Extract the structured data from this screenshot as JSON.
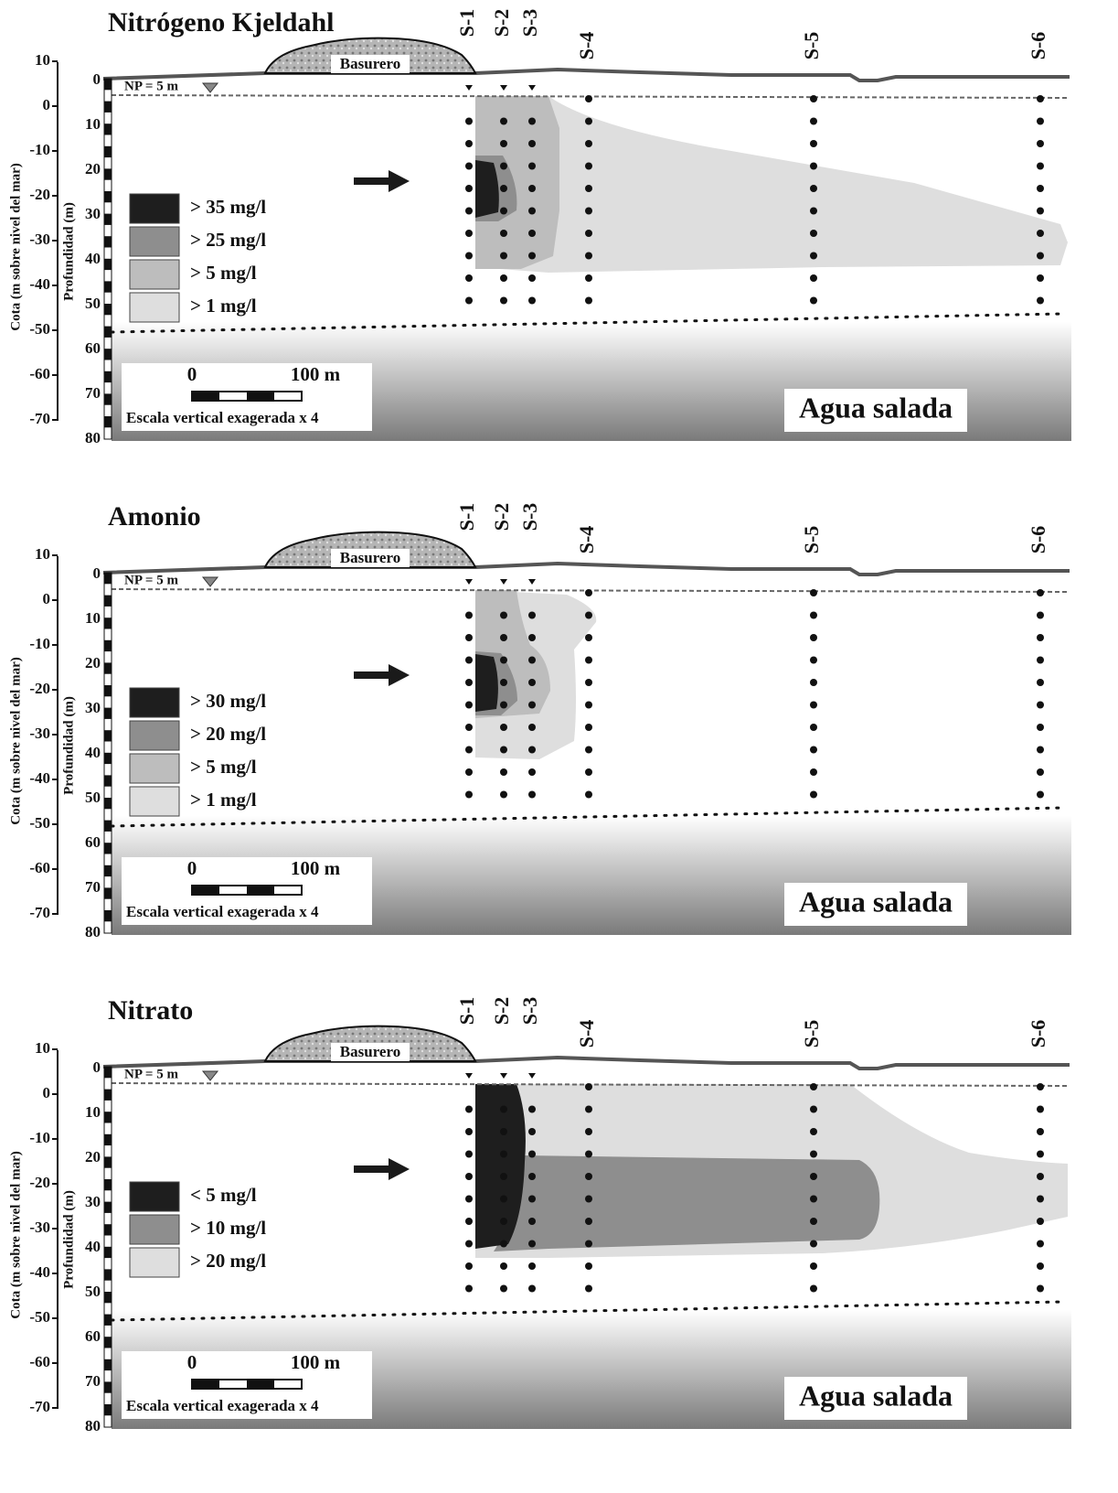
{
  "axis": {
    "outer_label": "Cota (m sobre nivel del mar)",
    "inner_label": "Profundidad (m)",
    "outer_ticks": [
      10,
      0,
      -10,
      -20,
      -30,
      -40,
      -50,
      -60,
      -70
    ],
    "inner_ticks": [
      0,
      10,
      20,
      30,
      40,
      50,
      60,
      70,
      80
    ]
  },
  "wells": [
    "S-1",
    "S-2",
    "S-3",
    "S-4",
    "S-5",
    "S-6"
  ],
  "landfill": "Basurero",
  "water_table": "NP = 5 m",
  "scale": {
    "start": "0",
    "end": "100 m",
    "note": "Escala vertical exagerada x 4"
  },
  "salt_water": "Agua salada",
  "panels": [
    {
      "title": "Nitrógeno Kjeldahl",
      "legend": [
        {
          "label": "> 35 mg/l",
          "color": "#1e1e1e"
        },
        {
          "label": "> 25 mg/l",
          "color": "#8e8e8e"
        },
        {
          "label": "> 5 mg/l",
          "color": "#bdbdbd"
        },
        {
          "label": "> 1 mg/l",
          "color": "#dedede"
        }
      ]
    },
    {
      "title": "Amonio",
      "legend": [
        {
          "label": "> 30 mg/l",
          "color": "#1e1e1e"
        },
        {
          "label": "> 20 mg/l",
          "color": "#8e8e8e"
        },
        {
          "label": "> 5 mg/l",
          "color": "#bdbdbd"
        },
        {
          "label": "> 1 mg/l",
          "color": "#dedede"
        }
      ]
    },
    {
      "title": "Nitrato",
      "legend": [
        {
          "label": "< 5 mg/l",
          "color": "#1e1e1e"
        },
        {
          "label": "> 10 mg/l",
          "color": "#8e8e8e"
        },
        {
          "label": "> 20 mg/l",
          "color": "#dedede"
        }
      ]
    }
  ]
}
